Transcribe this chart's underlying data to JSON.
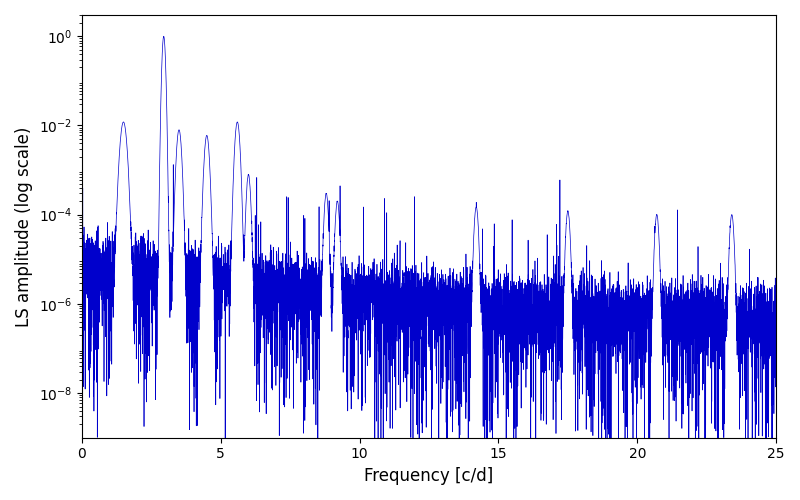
{
  "title": "",
  "xlabel": "Frequency [c/d]",
  "ylabel": "LS amplitude (log scale)",
  "xlim": [
    0,
    25
  ],
  "ylim": [
    1e-09,
    3.0
  ],
  "line_color": "#0000cc",
  "line_width": 0.5,
  "background_color": "#ffffff",
  "seed": 12345,
  "n_points": 8000,
  "freq_max": 25.0,
  "main_peak_freq": 2.95,
  "main_peak_amp": 1.0,
  "secondary_peaks": [
    {
      "freq": 1.5,
      "amp": 0.012,
      "sigma": 0.08
    },
    {
      "freq": 3.5,
      "amp": 0.008,
      "sigma": 0.06
    },
    {
      "freq": 4.5,
      "amp": 0.006,
      "sigma": 0.06
    },
    {
      "freq": 5.6,
      "amp": 0.012,
      "sigma": 0.06
    },
    {
      "freq": 6.0,
      "amp": 0.0008,
      "sigma": 0.05
    },
    {
      "freq": 8.8,
      "amp": 0.0003,
      "sigma": 0.05
    },
    {
      "freq": 9.2,
      "amp": 0.0002,
      "sigma": 0.05
    },
    {
      "freq": 14.2,
      "amp": 0.00015,
      "sigma": 0.05
    },
    {
      "freq": 17.5,
      "amp": 0.00012,
      "sigma": 0.05
    },
    {
      "freq": 20.7,
      "amp": 0.0001,
      "sigma": 0.05
    },
    {
      "freq": 23.4,
      "amp": 0.0001,
      "sigma": 0.05
    }
  ],
  "base_noise_level": 1e-05,
  "noise_floor_high_freq": 5e-07,
  "noise_decay": 0.18,
  "figsize": [
    8.0,
    5.0
  ],
  "dpi": 100
}
